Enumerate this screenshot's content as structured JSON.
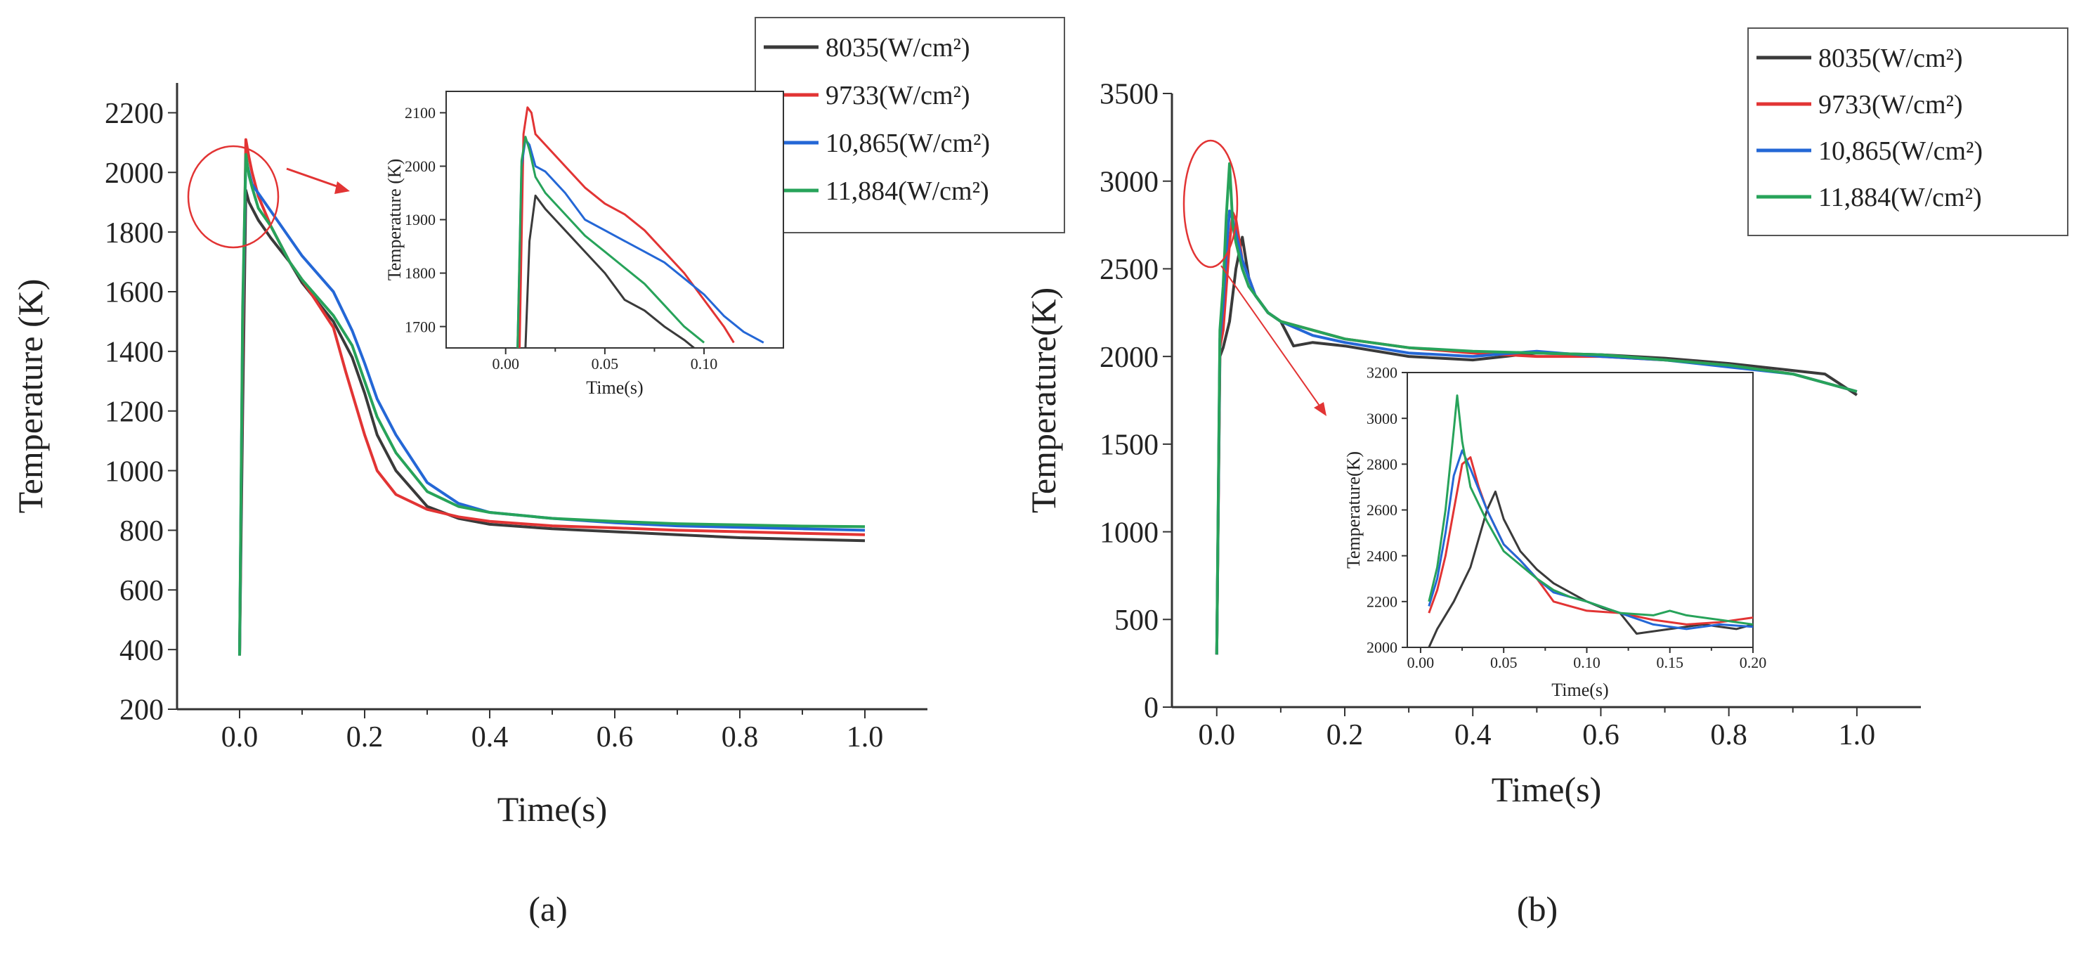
{
  "figure": {
    "panel_a_label": "(a)",
    "panel_b_label": "(b)"
  },
  "colors": {
    "s8035": "#3a3a3a",
    "s9733": "#e23434",
    "s10865": "#2467d6",
    "s11884": "#27a35a",
    "callout": "#e23434",
    "axis": "#333333"
  },
  "chart_data": [
    {
      "id": "a_main",
      "type": "line",
      "title": "",
      "xlabel": "Time(s)",
      "ylabel": "Temperature (K)",
      "xlim": [
        -0.1,
        1.1
      ],
      "ylim": [
        200,
        2300
      ],
      "xticks": [
        0.0,
        0.2,
        0.4,
        0.6,
        0.8,
        1.0
      ],
      "xtick_labels": [
        "0.0",
        "0.2",
        "0.4",
        "0.6",
        "0.8",
        "1.0"
      ],
      "yticks": [
        200,
        400,
        600,
        800,
        1000,
        1200,
        1400,
        1600,
        1800,
        2000,
        2200
      ],
      "ytick_labels": [
        "200",
        "400",
        "600",
        "800",
        "1000",
        "1200",
        "1400",
        "1600",
        "1800",
        "2000",
        "2200"
      ],
      "legend": {
        "position": "top-right",
        "entries": [
          "8035(W/cm2)",
          "9733(W/cm2)",
          "10,865(W/cm2)",
          "11,884(W/cm2)"
        ]
      },
      "series": [
        {
          "name": "8035(W/cm2)",
          "color_key": "s8035",
          "x": [
            0.0,
            0.005,
            0.01,
            0.015,
            0.02,
            0.03,
            0.05,
            0.08,
            0.1,
            0.15,
            0.18,
            0.2,
            0.22,
            0.25,
            0.3,
            0.35,
            0.4,
            0.5,
            0.6,
            0.7,
            0.8,
            0.9,
            1.0
          ],
          "y": [
            380,
            1200,
            1940,
            1900,
            1880,
            1840,
            1780,
            1700,
            1630,
            1500,
            1380,
            1260,
            1120,
            1000,
            880,
            840,
            820,
            805,
            795,
            785,
            775,
            770,
            765
          ]
        },
        {
          "name": "9733(W/cm2)",
          "color_key": "s9733",
          "x": [
            0.0,
            0.005,
            0.01,
            0.015,
            0.02,
            0.03,
            0.05,
            0.08,
            0.1,
            0.15,
            0.17,
            0.2,
            0.22,
            0.25,
            0.3,
            0.35,
            0.4,
            0.5,
            0.6,
            0.7,
            0.8,
            0.9,
            1.0
          ],
          "y": [
            380,
            1400,
            2110,
            2050,
            2000,
            1920,
            1820,
            1700,
            1640,
            1480,
            1330,
            1120,
            1000,
            920,
            870,
            845,
            830,
            815,
            808,
            800,
            795,
            790,
            785
          ]
        },
        {
          "name": "10,865(W/cm2)",
          "color_key": "s10865",
          "x": [
            0.0,
            0.005,
            0.01,
            0.015,
            0.02,
            0.03,
            0.05,
            0.08,
            0.1,
            0.15,
            0.18,
            0.2,
            0.22,
            0.25,
            0.3,
            0.35,
            0.4,
            0.5,
            0.6,
            0.7,
            0.8,
            0.9,
            1.0
          ],
          "y": [
            380,
            1500,
            2050,
            2000,
            1960,
            1930,
            1870,
            1780,
            1720,
            1600,
            1470,
            1360,
            1240,
            1120,
            960,
            890,
            860,
            840,
            825,
            815,
            810,
            805,
            800
          ]
        },
        {
          "name": "11,884(W/cm2)",
          "color_key": "s11884",
          "x": [
            0.0,
            0.005,
            0.01,
            0.015,
            0.02,
            0.03,
            0.05,
            0.08,
            0.1,
            0.15,
            0.18,
            0.2,
            0.22,
            0.25,
            0.3,
            0.35,
            0.4,
            0.5,
            0.6,
            0.7,
            0.8,
            0.9,
            1.0
          ],
          "y": [
            380,
            1550,
            2060,
            1990,
            1950,
            1880,
            1820,
            1700,
            1640,
            1520,
            1420,
            1300,
            1180,
            1060,
            930,
            880,
            860,
            840,
            830,
            822,
            818,
            814,
            812
          ]
        }
      ]
    },
    {
      "id": "a_inset",
      "type": "line",
      "title": "",
      "xlabel": "Time(s)",
      "ylabel": "Temperature (K)",
      "xlim": [
        -0.03,
        0.14
      ],
      "ylim": [
        1660,
        2140
      ],
      "xticks": [
        0.0,
        0.05,
        0.1
      ],
      "xtick_labels": [
        "0.00",
        "0.05",
        "0.10"
      ],
      "yticks": [
        1700,
        1800,
        1900,
        2000,
        2100
      ],
      "ytick_labels": [
        "1700",
        "1800",
        "1900",
        "2000",
        "2100"
      ],
      "series": [
        {
          "name": "8035(W/cm2)",
          "color_key": "s8035",
          "x": [
            0.01,
            0.012,
            0.015,
            0.018,
            0.02,
            0.025,
            0.03,
            0.04,
            0.05,
            0.06,
            0.07,
            0.08,
            0.09,
            0.095
          ],
          "y": [
            1660,
            1860,
            1945,
            1930,
            1920,
            1900,
            1880,
            1840,
            1800,
            1750,
            1730,
            1700,
            1675,
            1660
          ]
        },
        {
          "name": "9733(W/cm2)",
          "color_key": "s9733",
          "x": [
            0.007,
            0.009,
            0.011,
            0.013,
            0.015,
            0.02,
            0.03,
            0.04,
            0.05,
            0.06,
            0.07,
            0.08,
            0.09,
            0.1,
            0.11,
            0.115
          ],
          "y": [
            1660,
            2060,
            2110,
            2100,
            2060,
            2040,
            2000,
            1960,
            1930,
            1910,
            1880,
            1840,
            1800,
            1750,
            1700,
            1670
          ]
        },
        {
          "name": "10,865(W/cm2)",
          "color_key": "s10865",
          "x": [
            0.006,
            0.008,
            0.01,
            0.012,
            0.015,
            0.02,
            0.03,
            0.04,
            0.05,
            0.06,
            0.07,
            0.08,
            0.09,
            0.1,
            0.11,
            0.12,
            0.13
          ],
          "y": [
            1660,
            2000,
            2050,
            2040,
            2000,
            1990,
            1950,
            1900,
            1880,
            1860,
            1840,
            1820,
            1790,
            1760,
            1720,
            1690,
            1670
          ]
        },
        {
          "name": "11,884(W/cm2)",
          "color_key": "s11884",
          "x": [
            0.006,
            0.008,
            0.01,
            0.012,
            0.015,
            0.02,
            0.03,
            0.04,
            0.05,
            0.06,
            0.07,
            0.08,
            0.09,
            0.1
          ],
          "y": [
            1660,
            2010,
            2055,
            2030,
            1980,
            1950,
            1910,
            1870,
            1840,
            1810,
            1780,
            1740,
            1700,
            1670
          ]
        }
      ]
    },
    {
      "id": "b_main",
      "type": "line",
      "title": "",
      "xlabel": "Time(s)",
      "ylabel": "Temperature(K)",
      "xlim": [
        -0.07,
        1.1
      ],
      "ylim": [
        0,
        3500
      ],
      "xticks": [
        0.0,
        0.2,
        0.4,
        0.6,
        0.8,
        1.0
      ],
      "xtick_labels": [
        "0.0",
        "0.2",
        "0.4",
        "0.6",
        "0.8",
        "1.0"
      ],
      "yticks": [
        0,
        500,
        1000,
        1500,
        2000,
        2500,
        3000,
        3500
      ],
      "ytick_labels": [
        "0",
        "500",
        "1000",
        "1500",
        "2000",
        "2500",
        "3000",
        "3500"
      ],
      "legend": {
        "position": "top-right",
        "entries": [
          "8035(W/cm2)",
          "9733(W/cm2)",
          "10,865(W/cm2)",
          "11,884(W/cm2)"
        ]
      },
      "series": [
        {
          "name": "8035(W/cm2)",
          "color_key": "s8035",
          "x": [
            0.0,
            0.005,
            0.01,
            0.02,
            0.03,
            0.04,
            0.05,
            0.06,
            0.08,
            0.1,
            0.12,
            0.15,
            0.2,
            0.3,
            0.4,
            0.5,
            0.6,
            0.7,
            0.8,
            0.9,
            0.95,
            1.0
          ],
          "y": [
            300,
            2000,
            2050,
            2200,
            2500,
            2680,
            2450,
            2350,
            2250,
            2200,
            2060,
            2080,
            2060,
            2000,
            1980,
            2020,
            2010,
            1990,
            1960,
            1920,
            1900,
            1780
          ]
        },
        {
          "name": "9733(W/cm2)",
          "color_key": "s9733",
          "x": [
            0.0,
            0.005,
            0.01,
            0.015,
            0.02,
            0.025,
            0.03,
            0.04,
            0.05,
            0.06,
            0.08,
            0.1,
            0.15,
            0.2,
            0.3,
            0.4,
            0.5,
            0.6,
            0.7,
            0.8,
            0.9,
            1.0
          ],
          "y": [
            300,
            2050,
            2150,
            2400,
            2650,
            2820,
            2780,
            2550,
            2450,
            2350,
            2250,
            2200,
            2150,
            2100,
            2050,
            2020,
            2000,
            2000,
            1980,
            1950,
            1900,
            1800
          ]
        },
        {
          "name": "10,865(W/cm2)",
          "color_key": "s10865",
          "x": [
            0.0,
            0.005,
            0.01,
            0.015,
            0.02,
            0.025,
            0.03,
            0.04,
            0.05,
            0.06,
            0.08,
            0.1,
            0.15,
            0.2,
            0.3,
            0.4,
            0.5,
            0.6,
            0.7,
            0.8,
            0.9,
            1.0
          ],
          "y": [
            300,
            2100,
            2300,
            2600,
            2830,
            2780,
            2700,
            2550,
            2450,
            2350,
            2250,
            2200,
            2120,
            2080,
            2020,
            2000,
            2030,
            2000,
            1980,
            1940,
            1900,
            1800
          ]
        },
        {
          "name": "11,884(W/cm2)",
          "color_key": "s11884",
          "x": [
            0.0,
            0.005,
            0.01,
            0.015,
            0.02,
            0.025,
            0.03,
            0.04,
            0.05,
            0.06,
            0.08,
            0.1,
            0.15,
            0.2,
            0.3,
            0.4,
            0.5,
            0.6,
            0.7,
            0.8,
            0.9,
            1.0
          ],
          "y": [
            300,
            2150,
            2400,
            2800,
            3100,
            2750,
            2650,
            2500,
            2400,
            2350,
            2250,
            2200,
            2150,
            2100,
            2050,
            2030,
            2020,
            2010,
            1980,
            1950,
            1900,
            1800
          ]
        }
      ]
    },
    {
      "id": "b_inset",
      "type": "line",
      "title": "",
      "xlabel": "Time(s)",
      "ylabel": "Temperature(K)",
      "xlim": [
        -0.008,
        0.2
      ],
      "ylim": [
        2000,
        3200
      ],
      "xticks": [
        0.0,
        0.05,
        0.1,
        0.15,
        0.2
      ],
      "xtick_labels": [
        "0.00",
        "0.05",
        "0.10",
        "0.15",
        "0.20"
      ],
      "yticks": [
        2000,
        2200,
        2400,
        2600,
        2800,
        3000,
        3200
      ],
      "ytick_labels": [
        "2000",
        "2200",
        "2400",
        "2600",
        "2800",
        "3000",
        "3200"
      ],
      "series": [
        {
          "name": "8035(W/cm2)",
          "color_key": "s8035",
          "x": [
            0.005,
            0.01,
            0.02,
            0.03,
            0.04,
            0.045,
            0.05,
            0.06,
            0.07,
            0.08,
            0.09,
            0.1,
            0.11,
            0.12,
            0.13,
            0.15,
            0.17,
            0.19,
            0.2
          ],
          "y": [
            2000,
            2080,
            2200,
            2350,
            2600,
            2680,
            2560,
            2420,
            2340,
            2280,
            2240,
            2200,
            2170,
            2150,
            2060,
            2080,
            2100,
            2080,
            2100
          ]
        },
        {
          "name": "9733(W/cm2)",
          "color_key": "s9733",
          "x": [
            0.005,
            0.01,
            0.015,
            0.02,
            0.025,
            0.03,
            0.035,
            0.04,
            0.05,
            0.06,
            0.07,
            0.08,
            0.09,
            0.1,
            0.12,
            0.14,
            0.16,
            0.18,
            0.2
          ],
          "y": [
            2150,
            2250,
            2400,
            2600,
            2800,
            2830,
            2700,
            2600,
            2450,
            2380,
            2300,
            2200,
            2180,
            2160,
            2150,
            2120,
            2100,
            2110,
            2130
          ]
        },
        {
          "name": "10,865(W/cm2)",
          "color_key": "s10865",
          "x": [
            0.005,
            0.01,
            0.015,
            0.02,
            0.025,
            0.03,
            0.04,
            0.05,
            0.06,
            0.07,
            0.08,
            0.09,
            0.1,
            0.12,
            0.14,
            0.16,
            0.18,
            0.2
          ],
          "y": [
            2180,
            2300,
            2500,
            2750,
            2860,
            2780,
            2600,
            2450,
            2380,
            2300,
            2240,
            2220,
            2200,
            2150,
            2100,
            2080,
            2100,
            2090
          ]
        },
        {
          "name": "11,884(W/cm2)",
          "color_key": "s11884",
          "x": [
            0.005,
            0.01,
            0.015,
            0.02,
            0.022,
            0.025,
            0.03,
            0.04,
            0.05,
            0.06,
            0.07,
            0.08,
            0.09,
            0.1,
            0.12,
            0.14,
            0.15,
            0.16,
            0.18,
            0.2
          ],
          "y": [
            2200,
            2350,
            2600,
            2950,
            3100,
            2900,
            2700,
            2550,
            2420,
            2360,
            2300,
            2250,
            2220,
            2200,
            2150,
            2140,
            2160,
            2140,
            2120,
            2100
          ]
        }
      ]
    }
  ]
}
